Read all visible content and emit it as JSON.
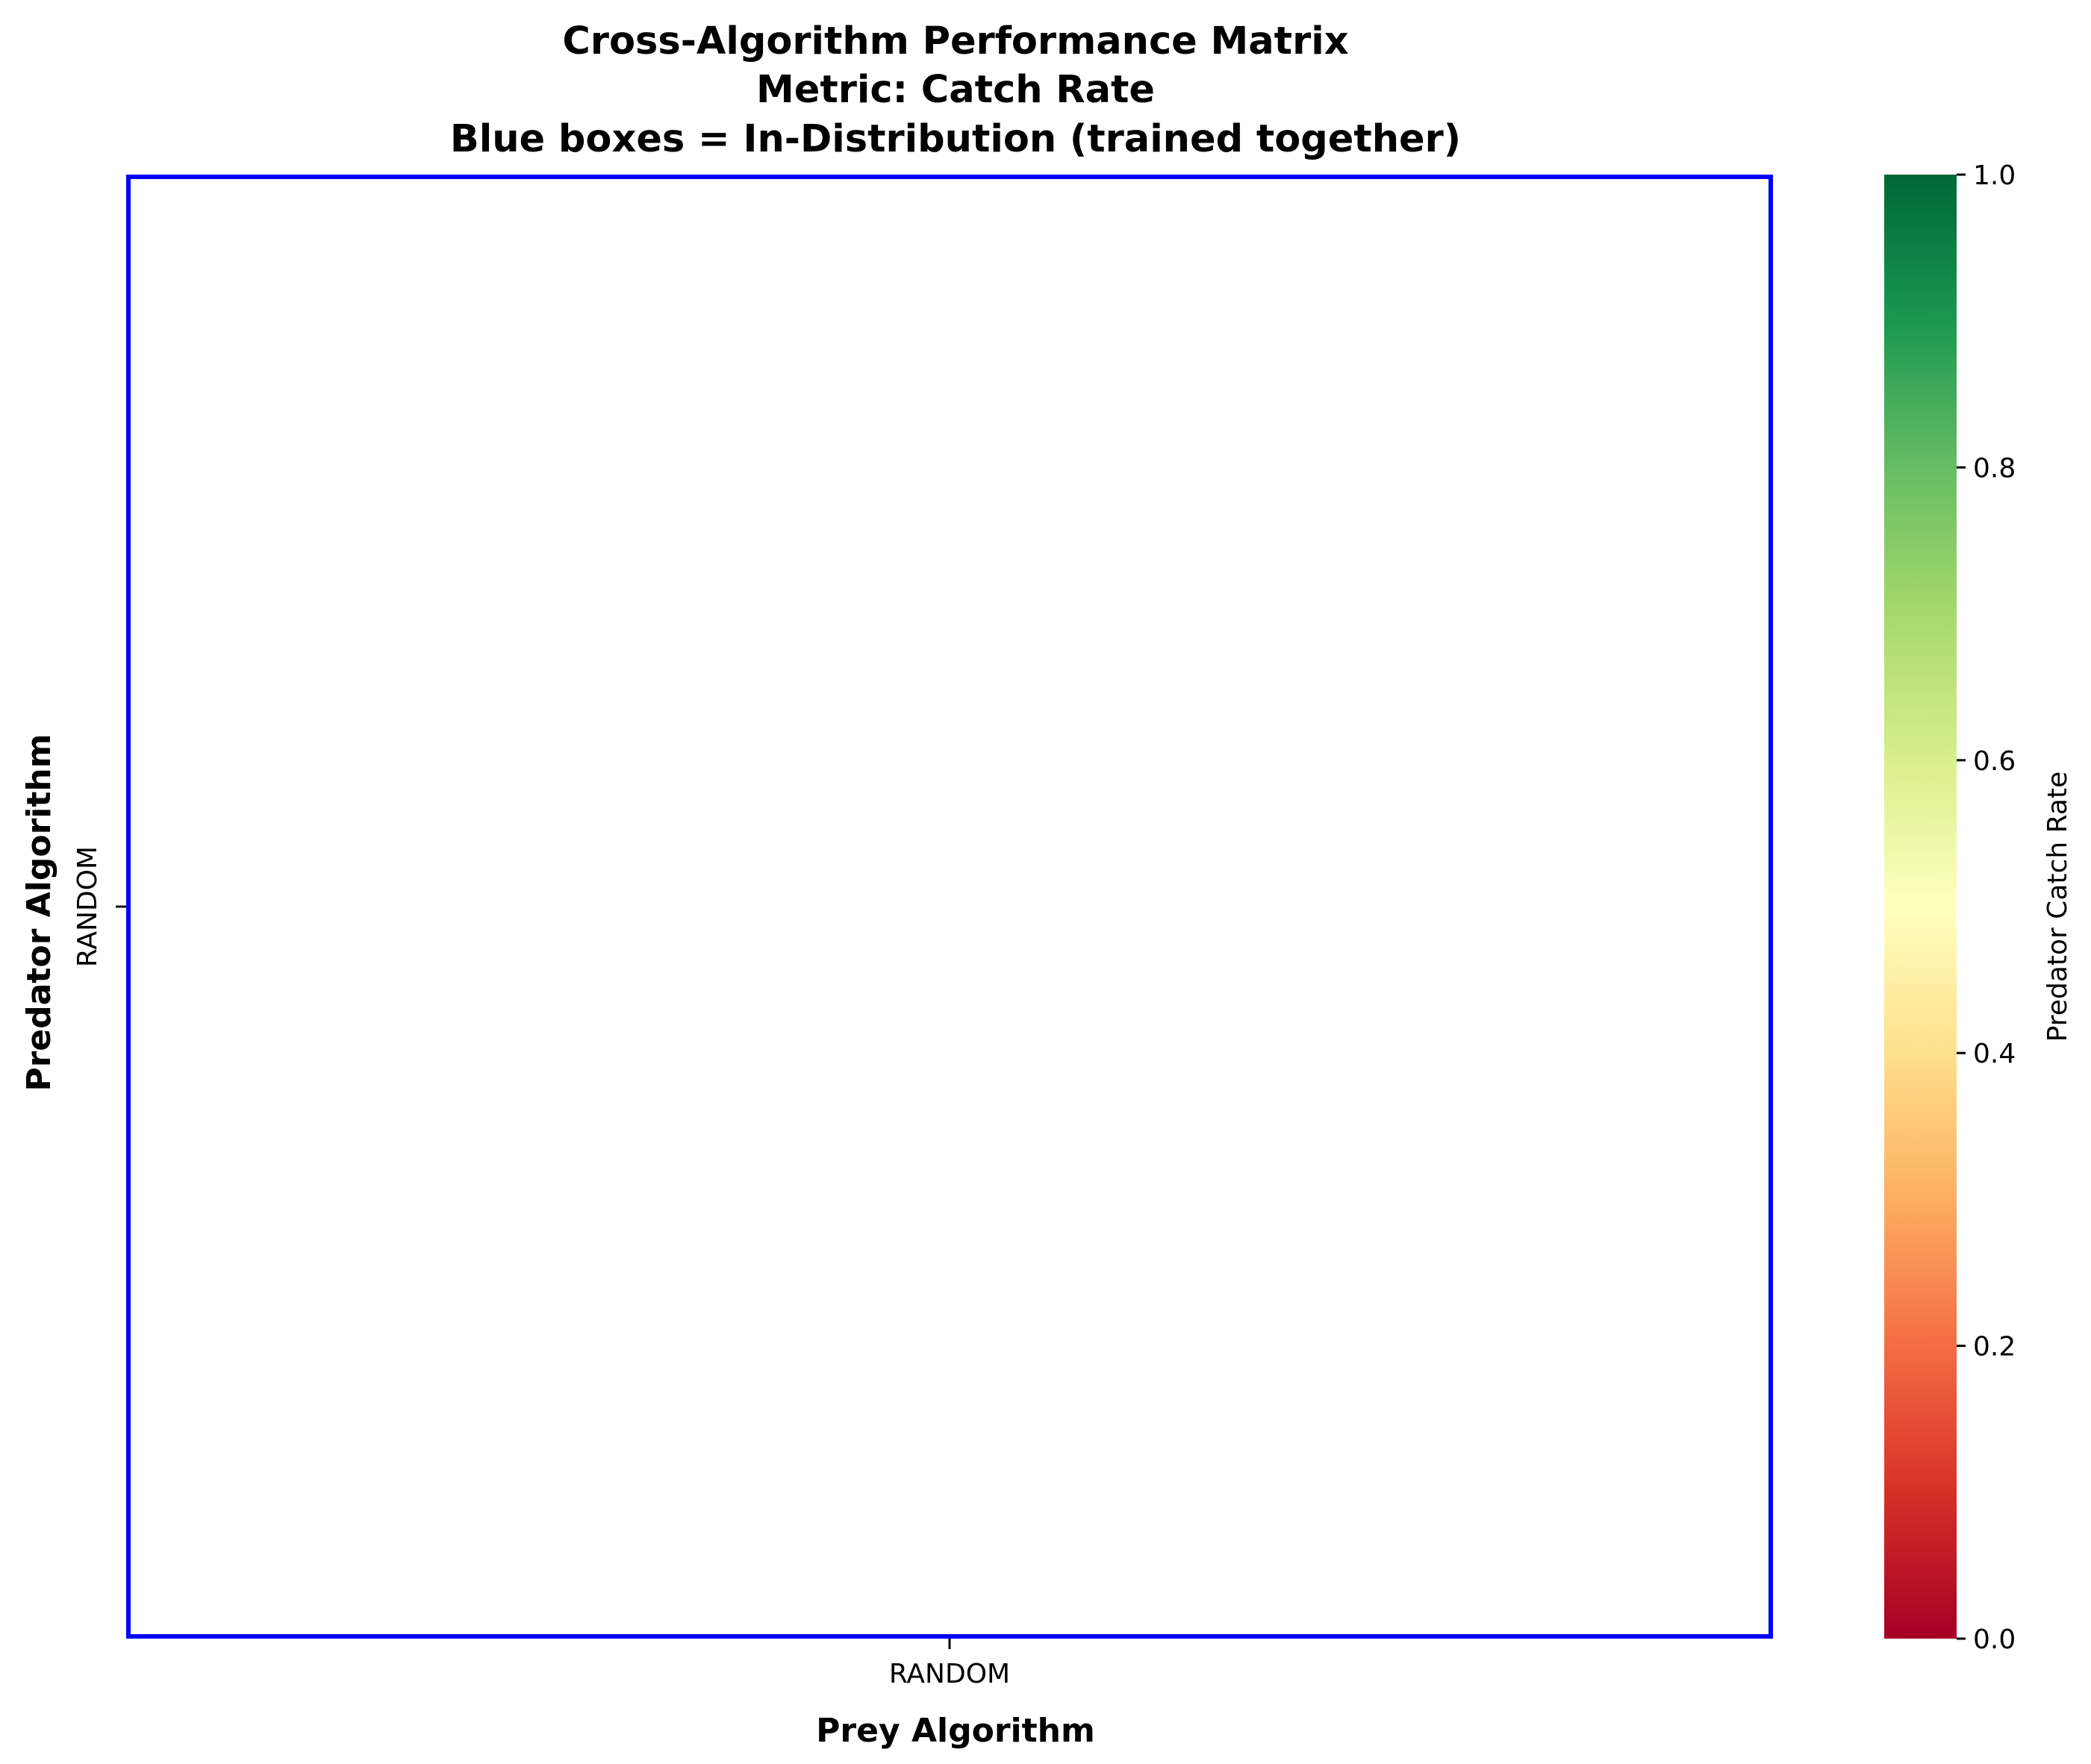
{
  "chart_data": {
    "type": "heatmap",
    "title_lines": [
      "Cross-Algorithm Performance Matrix",
      "Metric: Catch Rate",
      "Blue boxes = In-Distribution (trained together)"
    ],
    "xlabel": "Prey Algorithm",
    "ylabel": "Predator Algorithm",
    "x_categories": [
      "RANDOM"
    ],
    "y_categories": [
      "RANDOM"
    ],
    "values": [
      [
        null
      ]
    ],
    "in_distribution_boxes": [
      {
        "row": 0,
        "col": 0
      }
    ],
    "box_color": "#0000ff",
    "colorbar": {
      "label": "Predator Catch Rate",
      "range": [
        0,
        1
      ],
      "ticks": [
        "0.0",
        "0.2",
        "0.4",
        "0.6",
        "0.8",
        "1.0"
      ],
      "colormap": "RdYlGn",
      "colors": [
        "#a50026",
        "#d73027",
        "#f46d43",
        "#fdae61",
        "#fee08b",
        "#ffffbf",
        "#d9ef8b",
        "#a6d96a",
        "#66bd63",
        "#1a9850",
        "#006837"
      ]
    }
  }
}
